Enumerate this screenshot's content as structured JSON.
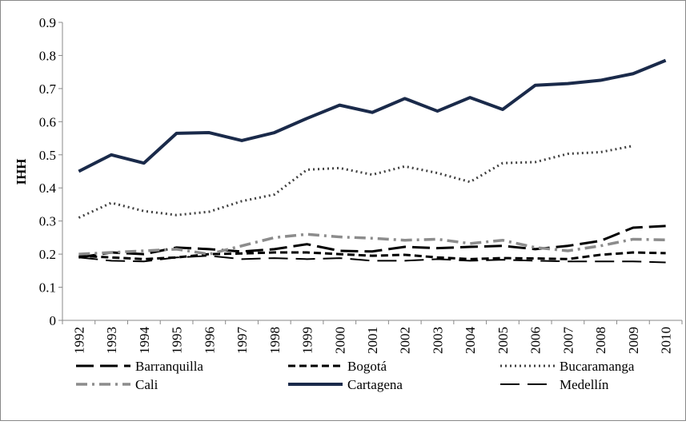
{
  "chart_data": {
    "type": "line",
    "y_label": "IHH",
    "categories": [
      "1992",
      "1993",
      "1994",
      "1995",
      "1996",
      "1997",
      "1998",
      "1999",
      "2000",
      "2001",
      "2002",
      "2003",
      "2004",
      "2005",
      "2006",
      "2007",
      "2008",
      "2009",
      "2010"
    ],
    "ylim": [
      0,
      0.9
    ],
    "yticks": [
      0,
      0.1,
      0.2,
      0.3,
      0.4,
      0.5,
      0.6,
      0.7,
      0.8,
      0.9
    ],
    "legend": "bottom",
    "series": [
      {
        "name": "Barranquilla",
        "color": "#000000",
        "style": "long-dash",
        "width": 3,
        "values": [
          0.19,
          0.205,
          0.2,
          0.22,
          0.215,
          0.208,
          0.215,
          0.23,
          0.21,
          0.208,
          0.222,
          0.218,
          0.222,
          0.225,
          0.215,
          0.225,
          0.24,
          0.28,
          0.285
        ]
      },
      {
        "name": "Bogotá",
        "color": "#000000",
        "style": "dash",
        "width": 3,
        "values": [
          0.195,
          0.19,
          0.185,
          0.19,
          0.2,
          0.202,
          0.205,
          0.205,
          0.2,
          0.195,
          0.198,
          0.19,
          0.185,
          0.188,
          0.187,
          0.185,
          0.198,
          0.205,
          0.203
        ]
      },
      {
        "name": "Bucaramanga",
        "color": "#404040",
        "style": "dot",
        "width": 3,
        "values": [
          0.31,
          0.355,
          0.33,
          0.318,
          0.328,
          0.36,
          0.38,
          0.455,
          0.46,
          0.44,
          0.465,
          0.445,
          0.418,
          0.475,
          0.478,
          0.503,
          0.508,
          0.527,
          null
        ]
      },
      {
        "name": "Cali",
        "color": "#8c8c8c",
        "style": "dash-dot",
        "width": 3.5,
        "values": [
          0.2,
          0.205,
          0.21,
          0.215,
          0.2,
          0.225,
          0.25,
          0.26,
          0.252,
          0.248,
          0.242,
          0.245,
          0.232,
          0.242,
          0.22,
          0.21,
          0.225,
          0.245,
          0.243
        ]
      },
      {
        "name": "Cartagena",
        "color": "#1a2a4a",
        "style": "solid",
        "width": 4,
        "values": [
          0.45,
          0.5,
          0.475,
          0.565,
          0.567,
          0.543,
          0.567,
          0.61,
          0.65,
          0.628,
          0.67,
          0.632,
          0.673,
          0.637,
          0.71,
          0.715,
          0.725,
          0.745,
          0.785
        ]
      },
      {
        "name": "Medellín",
        "color": "#000000",
        "style": "long-dash-thin",
        "width": 2,
        "values": [
          0.19,
          0.18,
          0.178,
          0.19,
          0.195,
          0.185,
          0.188,
          0.185,
          0.188,
          0.18,
          0.18,
          0.185,
          0.18,
          0.183,
          0.18,
          0.178,
          0.178,
          0.178,
          0.175
        ]
      }
    ]
  }
}
